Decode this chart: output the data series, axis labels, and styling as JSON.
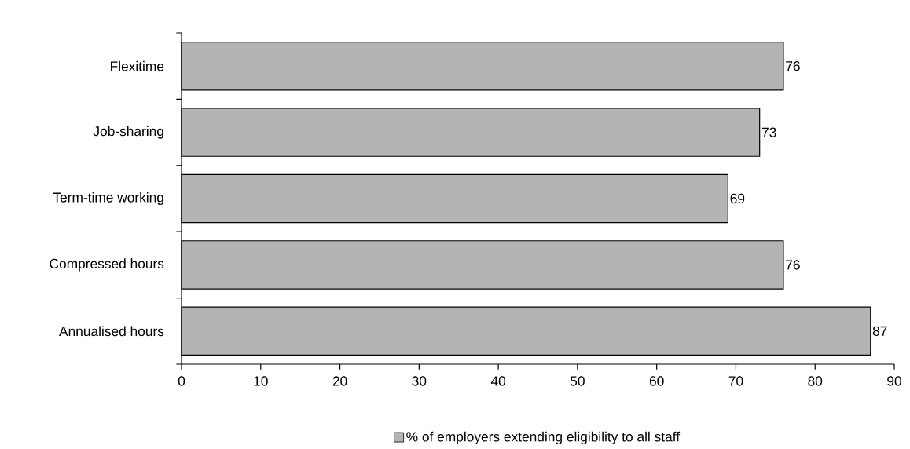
{
  "chart_data": {
    "type": "bar",
    "orientation": "horizontal",
    "categories": [
      "Flexitime",
      "Job-sharing",
      "Term-time working",
      "Compressed hours",
      "Annualised hours"
    ],
    "series": [
      {
        "name": "% of employers extending eligibility to all staff",
        "color": "#b4b4b4",
        "values": [
          76,
          73,
          69,
          76,
          87
        ]
      }
    ],
    "xlim": [
      0,
      90
    ],
    "xticks": [
      0,
      10,
      20,
      30,
      40,
      50,
      60,
      70,
      80,
      90
    ],
    "data_labels": true,
    "legend": "bottom"
  }
}
